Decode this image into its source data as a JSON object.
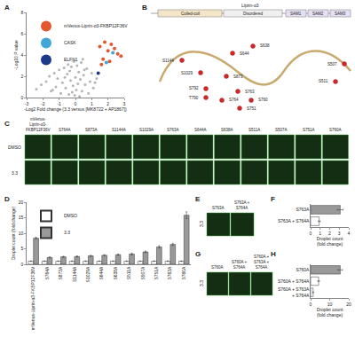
{
  "chart_data": [
    {
      "type": "scatter",
      "x_label": "-Log2 Fold change (3.3 versus [MK8722 + AP1867])",
      "y_label": "-Log10 P value",
      "xlim": [
        -3,
        3
      ],
      "xticks": [
        -3,
        -2,
        -1,
        0,
        1,
        2,
        3
      ],
      "ylim": [
        0,
        8
      ],
      "yticks": [
        0,
        2,
        4,
        6,
        8
      ],
      "grid": false,
      "legend": "upper left",
      "series": [
        {
          "color": "#b5b5b5",
          "x": [
            -2.4,
            -2.1,
            -1.8,
            -1.6,
            -1.5,
            -1.3,
            -1.2,
            -1.1,
            -1.0,
            -0.9,
            -0.8,
            -0.7,
            -0.6,
            -0.5,
            -0.45,
            -0.4,
            -0.3,
            -0.25,
            -0.2,
            -0.15,
            -0.1,
            -0.05,
            0,
            0.05,
            0.1,
            0.15,
            0.2,
            0.25,
            0.3,
            0.35,
            0.4,
            0.5,
            0.6,
            0.7,
            0.8,
            0.9,
            1.0,
            1.1,
            1.2,
            -0.35,
            0.45,
            -0.65,
            0.55,
            -1.4,
            1.3
          ],
          "values": [
            0.8,
            1.2,
            1.5,
            2.0,
            0.6,
            2.3,
            1.0,
            1.8,
            2.6,
            0.4,
            1.4,
            2.8,
            0.9,
            2.2,
            3.1,
            0.3,
            1.6,
            2.9,
            0.5,
            1.1,
            3.4,
            0.2,
            1.9,
            0.7,
            3.0,
            1.3,
            2.4,
            0.1,
            1.7,
            3.3,
            0.6,
            2.1,
            1.2,
            2.7,
            0.4,
            1.5,
            2.3,
            0.9,
            1.4,
            2.5,
            3.6,
            1.9,
            2.6,
            0.7,
            1.8
          ]
        },
        {
          "name": "mVenus-Liprin-α3-FKBP12F36V",
          "color": "#e4572e",
          "x": [
            1.5,
            1.8,
            2.0,
            2.2,
            2.4,
            2.6,
            1.7,
            2.1,
            2.8,
            1.6
          ],
          "values": [
            4.8,
            5.2,
            4.4,
            5.0,
            4.6,
            4.1,
            3.6,
            3.4,
            3.9,
            3.1
          ]
        },
        {
          "name": "CASK",
          "color": "#3fa7d6",
          "x": [
            2.3,
            1.9
          ],
          "values": [
            4.2,
            3.3
          ]
        },
        {
          "name": "ELFN1",
          "color": "#1d3a8a",
          "x": [
            1.4
          ],
          "values": [
            2.3
          ]
        }
      ]
    },
    {
      "type": "bar",
      "y_label": "Droplet count (fold change)",
      "categories": [
        "mVenus-Liprin-α3-FKBP12F36V",
        "S764A",
        "S873A",
        "S1144A",
        "S1029A",
        "S644A",
        "S638A",
        "S511A",
        "S507A",
        "S751A",
        "S763A",
        "S760A"
      ],
      "ylim": [
        0,
        20
      ],
      "yticks": [
        0,
        5,
        10,
        15,
        20
      ],
      "grid": false,
      "legend": "upper left",
      "series": [
        {
          "name": "DMSO",
          "color": "#ffffff",
          "values": [
            1,
            1,
            1,
            1,
            1,
            1,
            1,
            1,
            1,
            1,
            1,
            1
          ],
          "errors": [
            0.1,
            0.1,
            0.1,
            0.1,
            0.1,
            0.1,
            0.1,
            0.1,
            0.1,
            0.1,
            0.1,
            0.1
          ]
        },
        {
          "name": "3.3",
          "color": "#999999",
          "values": [
            8.4,
            2.2,
            2.4,
            2.5,
            2.7,
            2.9,
            3.1,
            3.3,
            4.0,
            5.6,
            6.4,
            15.8
          ],
          "errors": [
            0.3,
            0.2,
            0.2,
            0.2,
            0.2,
            0.2,
            0.2,
            0.3,
            0.3,
            0.4,
            0.4,
            1.1
          ]
        }
      ]
    },
    {
      "type": "bar",
      "orientation": "horizontal",
      "x_label": "Droplet count (fold change)",
      "categories": [
        "S763A",
        "S763A + S764A"
      ],
      "values": [
        3.1,
        0.9
      ],
      "errors": [
        0.3,
        0.1
      ],
      "colors": [
        "#999999",
        "#ffffff"
      ],
      "xlim": [
        0,
        4
      ],
      "xticks": [
        0,
        1,
        2,
        3,
        4
      ],
      "grid": false
    },
    {
      "type": "bar",
      "orientation": "horizontal",
      "x_label": "Droplet count (fold change)",
      "categories": [
        "S760A",
        "S760A + S764A",
        "S760A + S763A + S764A"
      ],
      "values": [
        15.5,
        4.2,
        1.3
      ],
      "errors": [
        1.2,
        0.4,
        0.2
      ],
      "colors": [
        "#999999",
        "#ffffff",
        "#ffffff"
      ],
      "xlim": [
        0,
        20
      ],
      "xticks": [
        0,
        10,
        20
      ],
      "grid": false
    }
  ],
  "figure": {
    "panel_letters": [
      "A",
      "B",
      "C",
      "D",
      "E",
      "F",
      "G",
      "H"
    ],
    "B": {
      "title": "Liprin-α3",
      "domains": [
        "Coiled-coil",
        "Disordered",
        "SAM1",
        "SAM2",
        "SAM3"
      ],
      "sites": [
        "S1144",
        "S644",
        "S638",
        "S507",
        "S511",
        "S873",
        "S1029",
        "S792",
        "T790",
        "S764",
        "S763",
        "S760",
        "S751"
      ]
    },
    "C": {
      "columns": [
        "mVenus-Liprin-α3-FKBP12F36V",
        "S764A",
        "S873A",
        "S1144A",
        "S1029A",
        "S763A",
        "S644A",
        "S638A",
        "S511A",
        "S507A",
        "S751A",
        "S760A"
      ],
      "rows": [
        "DMSO",
        "3.3"
      ]
    },
    "E": {
      "columns": [
        "S763A",
        "S763A + S764A"
      ],
      "rows": [
        "3.3"
      ]
    },
    "G": {
      "columns": [
        "S760A",
        "S760A + S764A",
        "S760A + S763A + S764A"
      ],
      "rows": [
        "3.3"
      ]
    }
  }
}
